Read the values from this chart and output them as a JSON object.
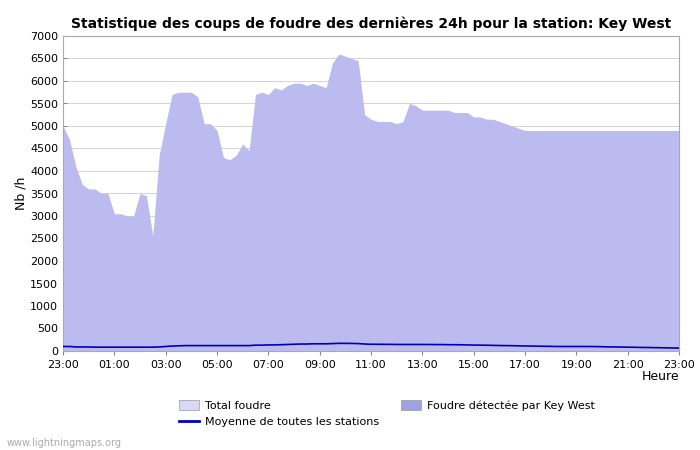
{
  "title": "Statistique des coups de foudre des dernières 24h pour la station: Key West",
  "xlabel": "Heure",
  "ylabel": "Nb /h",
  "watermark": "www.lightningmaps.org",
  "legend_total": "Total foudre",
  "legend_moyenne": "Moyenne de toutes les stations",
  "legend_detected": "Foudre détectée par Key West",
  "ylim": [
    0,
    7000
  ],
  "yticks": [
    0,
    500,
    1000,
    1500,
    2000,
    2500,
    3000,
    3500,
    4000,
    4500,
    5000,
    5500,
    6000,
    6500,
    7000
  ],
  "xtick_labels": [
    "23:00",
    "01:00",
    "03:00",
    "05:00",
    "07:00",
    "09:00",
    "11:00",
    "13:00",
    "15:00",
    "17:00",
    "19:00",
    "21:00",
    "23:00"
  ],
  "total_foudre": [
    5000,
    4700,
    4100,
    3700,
    3600,
    3600,
    3500,
    3500,
    3050,
    3050,
    3000,
    3000,
    3500,
    3450,
    2550,
    4350,
    5050,
    5700,
    5750,
    5750,
    5750,
    5650,
    5050,
    5050,
    4900,
    4300,
    4250,
    4350,
    4600,
    4450,
    5700,
    5750,
    5700,
    5850,
    5800,
    5900,
    5950,
    5950,
    5900,
    5950,
    5900,
    5850,
    6400,
    6600,
    6550,
    6500,
    6450,
    5250,
    5150,
    5100,
    5100,
    5100,
    5050,
    5100,
    5500,
    5450,
    5350,
    5350,
    5350,
    5350,
    5350,
    5300,
    5300,
    5300,
    5200,
    5200,
    5150,
    5150,
    5100,
    5050,
    5000,
    4950,
    4900,
    4900,
    4900,
    4900,
    4900,
    4900,
    4900,
    4900,
    4900,
    4900,
    4900,
    4900,
    4900,
    4900,
    4900,
    4900,
    4900,
    4900,
    4900,
    4900,
    4900,
    4900,
    4900,
    4900,
    4900
  ],
  "detected_keywest": [
    5000,
    4700,
    4100,
    3700,
    3600,
    3600,
    3500,
    3500,
    3050,
    3050,
    3000,
    3000,
    3500,
    3450,
    2550,
    4350,
    5050,
    5700,
    5750,
    5750,
    5750,
    5650,
    5050,
    5050,
    4900,
    4300,
    4250,
    4350,
    4600,
    4450,
    5700,
    5750,
    5700,
    5850,
    5800,
    5900,
    5950,
    5950,
    5900,
    5950,
    5900,
    5850,
    6400,
    6600,
    6550,
    6500,
    6450,
    5250,
    5150,
    5100,
    5100,
    5100,
    5050,
    5100,
    5500,
    5450,
    5350,
    5350,
    5350,
    5350,
    5350,
    5300,
    5300,
    5300,
    5200,
    5200,
    5150,
    5150,
    5100,
    5050,
    5000,
    4950,
    4900,
    4900,
    4900,
    4900,
    4900,
    4900,
    4900,
    4900,
    4900,
    4900,
    4900,
    4900,
    4900,
    4900,
    4900,
    4900,
    4900,
    4900,
    4900,
    4900,
    4900,
    4900,
    4900,
    4900,
    4900
  ],
  "hours_fine": 97,
  "moyenne": [
    100,
    100,
    90,
    90,
    90,
    85,
    85,
    85,
    85,
    85,
    85,
    85,
    85,
    85,
    85,
    90,
    100,
    110,
    115,
    120,
    120,
    120,
    120,
    120,
    120,
    120,
    120,
    120,
    120,
    120,
    130,
    130,
    135,
    135,
    140,
    145,
    150,
    155,
    155,
    160,
    160,
    160,
    165,
    170,
    170,
    168,
    165,
    155,
    150,
    150,
    148,
    148,
    145,
    145,
    145,
    145,
    145,
    145,
    143,
    143,
    140,
    140,
    138,
    135,
    132,
    130,
    128,
    125,
    122,
    120,
    118,
    115,
    112,
    110,
    108,
    105,
    103,
    100,
    100,
    100,
    100,
    100,
    100,
    98,
    95,
    92,
    90,
    88,
    85,
    83,
    80,
    78,
    75,
    73,
    70,
    68,
    65
  ],
  "color_total": "#d8d8f8",
  "color_detected": "#a0a0e8",
  "color_moyenne": "#0000bb",
  "background_color": "#ffffff",
  "plot_bg_color": "#ffffff",
  "grid_color": "#cccccc"
}
